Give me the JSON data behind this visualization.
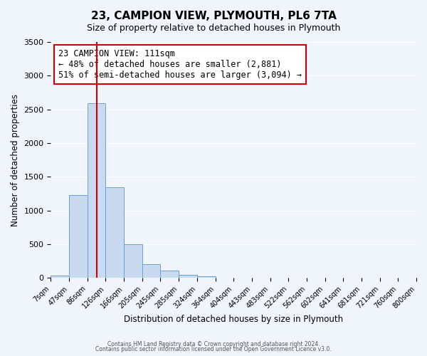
{
  "title": "23, CAMPION VIEW, PLYMOUTH, PL6 7TA",
  "subtitle": "Size of property relative to detached houses in Plymouth",
  "xlabel": "Distribution of detached houses by size in Plymouth",
  "ylabel": "Number of detached properties",
  "bar_color": "#c9d9f0",
  "bar_edge_color": "#6a9fd8",
  "bin_labels": [
    "7sqm",
    "47sqm",
    "86sqm",
    "126sqm",
    "166sqm",
    "205sqm",
    "245sqm",
    "285sqm",
    "324sqm",
    "364sqm",
    "404sqm",
    "443sqm",
    "483sqm",
    "522sqm",
    "562sqm",
    "602sqm",
    "641sqm",
    "681sqm",
    "721sqm",
    "760sqm",
    "800sqm"
  ],
  "bar_heights": [
    40,
    1230,
    2590,
    1350,
    500,
    200,
    110,
    45,
    20,
    0,
    0,
    0,
    0,
    0,
    0,
    0,
    0,
    0,
    0,
    0
  ],
  "ylim": [
    0,
    3500
  ],
  "yticks": [
    0,
    500,
    1000,
    1500,
    2000,
    2500,
    3000,
    3500
  ],
  "vline_position": 2.5,
  "vline_color": "#cc0000",
  "annotation_line1": "23 CAMPION VIEW: 111sqm",
  "annotation_line2": "← 48% of detached houses are smaller (2,881)",
  "annotation_line3": "51% of semi-detached houses are larger (3,094) →",
  "annotation_box_color": "#cc0000",
  "footer_line1": "Contains HM Land Registry data © Crown copyright and database right 2024.",
  "footer_line2": "Contains public sector information licensed under the Open Government Licence v3.0.",
  "background_color": "#f0f4fb",
  "plot_bg_color": "#f0f4fb"
}
